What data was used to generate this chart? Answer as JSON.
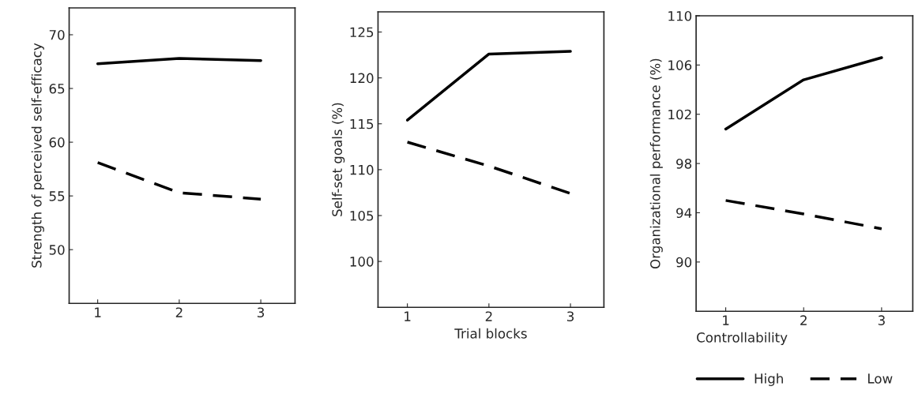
{
  "chart_data": [
    {
      "type": "line",
      "ylabel": "Strength of perceived self-efficacy",
      "xlim": [
        0.65,
        3.42
      ],
      "xticks": [
        1,
        2,
        3
      ],
      "ylim": [
        45,
        72.5
      ],
      "yticks": [
        50,
        55,
        60,
        65,
        70
      ],
      "legend": false,
      "grid": false,
      "series": [
        {
          "color": "#000000",
          "line_style": "solid",
          "x": [
            1,
            2,
            3
          ],
          "values": [
            67.3,
            67.8,
            67.6
          ]
        },
        {
          "color": "#000000",
          "line_style": "dashed",
          "x": [
            1,
            2,
            3
          ],
          "values": [
            58.1,
            55.3,
            54.7
          ]
        }
      ]
    },
    {
      "type": "line",
      "xlabel": "Trial blocks",
      "ylabel": "Self-set goals (%)",
      "xlim": [
        0.64,
        3.41
      ],
      "xticks": [
        1,
        2,
        3
      ],
      "ylim": [
        95,
        127.2
      ],
      "yticks": [
        100,
        105,
        110,
        115,
        120,
        125
      ],
      "legend": false,
      "grid": false,
      "series": [
        {
          "color": "#000000",
          "line_style": "solid",
          "x": [
            1,
            2,
            3
          ],
          "values": [
            115.4,
            122.6,
            122.9
          ]
        },
        {
          "color": "#000000",
          "line_style": "dashed",
          "x": [
            1,
            2,
            3
          ],
          "values": [
            113.0,
            110.4,
            107.4
          ]
        }
      ]
    },
    {
      "type": "line",
      "xlabel": "Controllability",
      "ylabel": "Organizational performance (%)",
      "xlim": [
        0.62,
        3.4
      ],
      "xticks": [
        1,
        2,
        3
      ],
      "ylim": [
        86,
        110
      ],
      "yticks": [
        90,
        94,
        98,
        102,
        106,
        110
      ],
      "legend": "bottom",
      "grid": false,
      "series": [
        {
          "name": "High",
          "color": "#000000",
          "line_style": "solid",
          "x": [
            1,
            2,
            3
          ],
          "values": [
            100.8,
            104.8,
            106.6
          ]
        },
        {
          "name": "Low",
          "color": "#000000",
          "line_style": "dashed",
          "x": [
            1,
            2,
            3
          ],
          "values": [
            95.0,
            93.9,
            92.7
          ]
        }
      ]
    }
  ]
}
